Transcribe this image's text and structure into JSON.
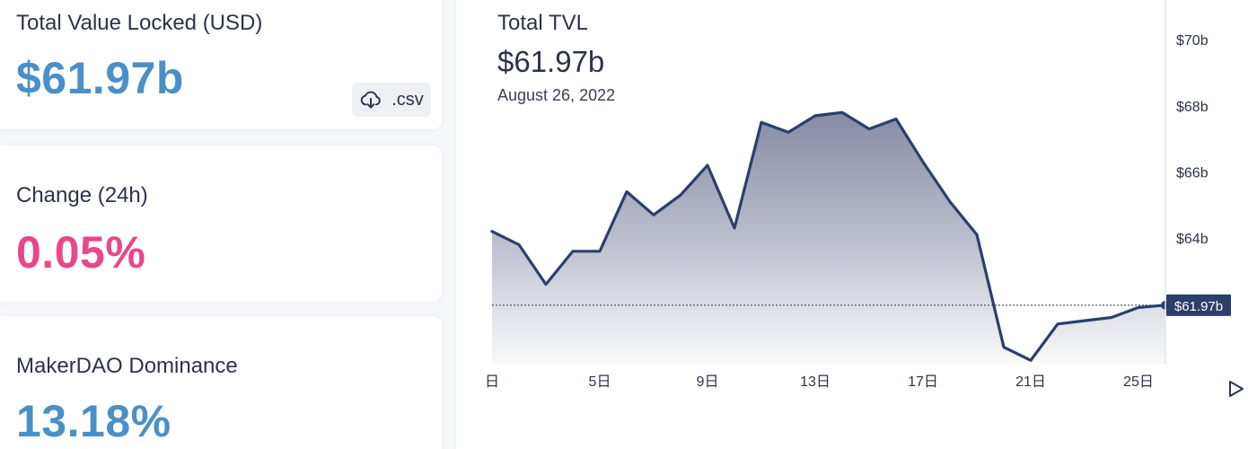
{
  "stats": {
    "tvl": {
      "label": "Total Value Locked (USD)",
      "value": "$61.97b",
      "color": "#4a90c8"
    },
    "change": {
      "label": "Change (24h)",
      "value": "0.05%",
      "color": "#e8478b"
    },
    "dominance": {
      "label": "MakerDAO Dominance",
      "value": "13.18%",
      "color": "#4a90c8"
    }
  },
  "csv_button": {
    "label": ".csv",
    "icon": "cloud-download-icon"
  },
  "chart_header": {
    "title": "Total TVL",
    "value": "$61.97b",
    "date": "August 26, 2022"
  },
  "chart_data": {
    "type": "area",
    "title": "Total TVL",
    "xlabel": "",
    "ylabel": "",
    "x_unit": "day of month (August 2022)",
    "y_unit": "USD billions",
    "x": [
      1,
      2,
      3,
      4,
      5,
      6,
      7,
      8,
      9,
      10,
      11,
      12,
      13,
      14,
      15,
      16,
      17,
      18,
      19,
      20,
      21,
      22,
      23,
      24,
      25,
      26
    ],
    "series": [
      {
        "values": [
          64.2,
          63.8,
          62.6,
          63.6,
          63.6,
          65.4,
          64.7,
          65.3,
          66.2,
          64.3,
          67.5,
          67.2,
          67.7,
          67.8,
          67.3,
          67.6,
          66.3,
          65.1,
          64.1,
          60.7,
          60.3,
          61.4,
          61.5,
          61.6,
          61.9,
          61.97
        ]
      }
    ],
    "xticks": [
      {
        "x": 1,
        "label": "日"
      },
      {
        "x": 5,
        "label": "5日"
      },
      {
        "x": 9,
        "label": "9日"
      },
      {
        "x": 13,
        "label": "13日"
      },
      {
        "x": 17,
        "label": "17日"
      },
      {
        "x": 21,
        "label": "21日"
      },
      {
        "x": 25,
        "label": "25日"
      }
    ],
    "yticks": [
      {
        "y": 64,
        "label": "$64b"
      },
      {
        "y": 66,
        "label": "$66b"
      },
      {
        "y": 68,
        "label": "$68b"
      },
      {
        "y": 70,
        "label": "$70b"
      }
    ],
    "xlim": [
      1,
      26
    ],
    "ylim": [
      60.2,
      71.2
    ],
    "current_marker": {
      "y": 61.97,
      "label": "$61.97b"
    },
    "grid": false,
    "line_color": "#2b3f6b",
    "fill_color": "#3c4470"
  }
}
